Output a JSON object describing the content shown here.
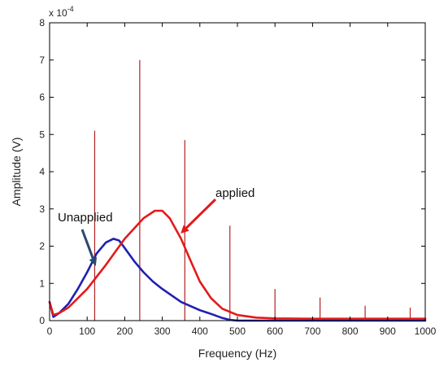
{
  "chart_data": {
    "type": "line",
    "xlabel": "Frequency (Hz)",
    "ylabel": "Amplitude (V)",
    "scale_label": "x 10",
    "scale_exponent": "-4",
    "xlim": [
      0,
      1000
    ],
    "ylim": [
      0,
      8
    ],
    "x_ticks": [
      "0",
      "100",
      "200",
      "300",
      "400",
      "500",
      "600",
      "700",
      "800",
      "900",
      "1000"
    ],
    "y_ticks": [
      "0",
      "1",
      "2",
      "3",
      "4",
      "5",
      "6",
      "7",
      "8"
    ],
    "grid": false,
    "series": [
      {
        "label": "Unapplied",
        "color": "#1f1fb4",
        "x": [
          0,
          10,
          25,
          50,
          75,
          100,
          125,
          150,
          170,
          185,
          200,
          225,
          250,
          275,
          300,
          350,
          400,
          430,
          460,
          480,
          500,
          600,
          700,
          800,
          900,
          1000
        ],
        "y": [
          0.5,
          0.1,
          0.2,
          0.45,
          0.85,
          1.3,
          1.8,
          2.1,
          2.2,
          2.15,
          1.95,
          1.6,
          1.3,
          1.05,
          0.85,
          0.5,
          0.28,
          0.18,
          0.07,
          0.02,
          0.0,
          0.0,
          0.0,
          0.0,
          0.0,
          0.0
        ]
      },
      {
        "label": "applied",
        "color": "#e31a1a",
        "x": [
          0,
          10,
          25,
          50,
          100,
          150,
          200,
          250,
          280,
          300,
          320,
          350,
          380,
          400,
          430,
          460,
          500,
          550,
          600,
          700,
          800,
          900,
          1000
        ],
        "y": [
          0.5,
          0.15,
          0.2,
          0.35,
          0.85,
          1.5,
          2.2,
          2.75,
          2.95,
          2.95,
          2.75,
          2.2,
          1.5,
          1.05,
          0.6,
          0.32,
          0.15,
          0.08,
          0.06,
          0.05,
          0.05,
          0.05,
          0.05
        ]
      }
    ],
    "spikes": {
      "color": "#b22222",
      "x": [
        120,
        240,
        360,
        480,
        600,
        720,
        840,
        960
      ],
      "y": [
        5.1,
        7.0,
        4.85,
        2.55,
        0.85,
        0.62,
        0.4,
        0.35
      ]
    },
    "annotations": [
      {
        "text": "Unapplied",
        "arrow_color": "#2b4a6b",
        "arrow_to": [
          120,
          1.55
        ]
      },
      {
        "text": "applied",
        "arrow_color": "#e31a1a",
        "arrow_to": [
          355,
          2.4
        ]
      }
    ]
  }
}
